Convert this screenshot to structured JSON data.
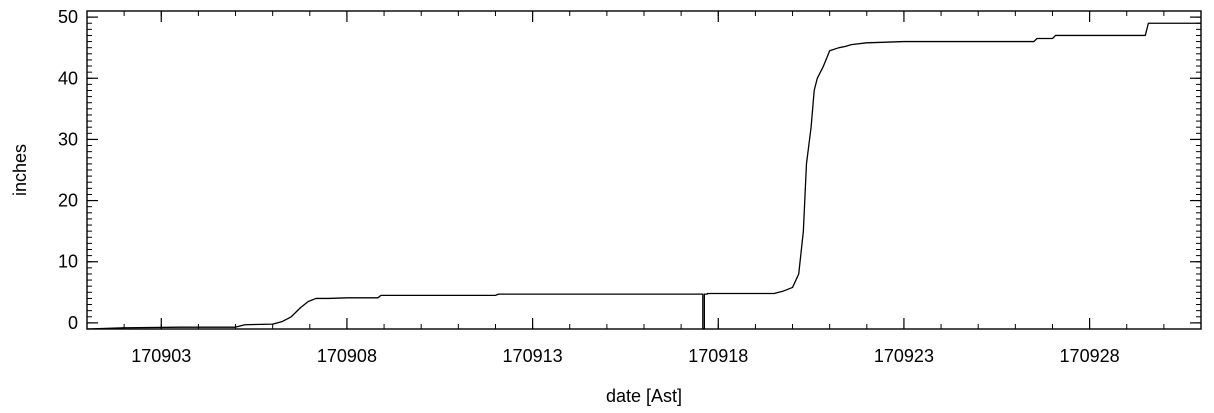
{
  "chart_data": {
    "type": "line",
    "title": "",
    "xlabel": "date [Ast]",
    "ylabel": "inches",
    "x_axis_kind": "date",
    "xlim": [
      "2017-09-01",
      "2017-10-01"
    ],
    "ylim": [
      -1,
      51
    ],
    "x_ticks": [
      {
        "date": "2017-09-03",
        "label": "170903"
      },
      {
        "date": "2017-09-08",
        "label": "170908"
      },
      {
        "date": "2017-09-13",
        "label": "170913"
      },
      {
        "date": "2017-09-18",
        "label": "170918"
      },
      {
        "date": "2017-09-23",
        "label": "170923"
      },
      {
        "date": "2017-09-28",
        "label": "170928"
      }
    ],
    "y_ticks": [
      0,
      10,
      20,
      30,
      40,
      50
    ],
    "grid": false,
    "series": [
      {
        "color": "#000000",
        "x": [
          "2017-09-01 00:00",
          "2017-09-02 00:00",
          "2017-09-03 12:00",
          "2017-09-05 00:00",
          "2017-09-05 06:00",
          "2017-09-06 00:00",
          "2017-09-06 06:00",
          "2017-09-06 12:00",
          "2017-09-06 18:00",
          "2017-09-06 23:00",
          "2017-09-07 04:00",
          "2017-09-07 12:00",
          "2017-09-08 00:00",
          "2017-09-08 20:00",
          "2017-09-08 22:00",
          "2017-09-12 00:00",
          "2017-09-12 02:00",
          "2017-09-17 14:00",
          "2017-09-17 14:00",
          "2017-09-17 15:00",
          "2017-09-17 15:00",
          "2017-09-17 17:00",
          "2017-09-17 17:00",
          "2017-09-19 12:00",
          "2017-09-19 18:00",
          "2017-09-20 00:00",
          "2017-09-20 04:00",
          "2017-09-20 07:00",
          "2017-09-20 09:00",
          "2017-09-20 12:00",
          "2017-09-20 14:00",
          "2017-09-20 16:00",
          "2017-09-20 18:00",
          "2017-09-20 20:00",
          "2017-09-21 00:00",
          "2017-09-21 06:00",
          "2017-09-21 10:00",
          "2017-09-21 14:00",
          "2017-09-22 00:00",
          "2017-09-23 00:00",
          "2017-09-26 12:00",
          "2017-09-26 14:00",
          "2017-09-27 00:00",
          "2017-09-27 02:00",
          "2017-09-29 12:00",
          "2017-09-29 14:00",
          "2017-10-01 00:00"
        ],
        "y": [
          -1.0,
          -0.8,
          -0.7,
          -0.7,
          -0.3,
          -0.2,
          0.2,
          1.0,
          2.5,
          3.5,
          4.0,
          4.0,
          4.1,
          4.1,
          4.5,
          4.5,
          4.7,
          4.7,
          -1.0,
          -1.0,
          4.7,
          4.7,
          4.8,
          4.8,
          5.2,
          5.8,
          8.0,
          15.0,
          26.0,
          32.0,
          38.0,
          40.0,
          41.0,
          42.0,
          44.5,
          45.0,
          45.2,
          45.5,
          45.8,
          46.0,
          46.0,
          46.5,
          46.5,
          47.0,
          47.0,
          49.0,
          49.0
        ]
      }
    ]
  }
}
